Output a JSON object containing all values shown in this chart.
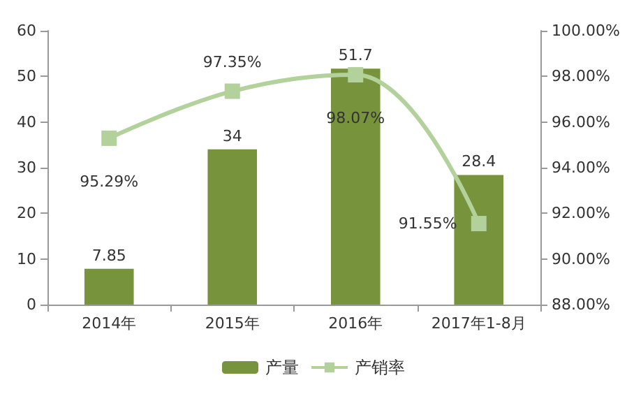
{
  "chart_data": {
    "type": "bar",
    "categories": [
      "2014年",
      "2015年",
      "2016年",
      "2017年1-8月"
    ],
    "series": [
      {
        "name": "产量",
        "color": "#77933c",
        "values": [
          7.85,
          34,
          51.7,
          28.4
        ],
        "value_labels": [
          "7.85",
          "34",
          "51.7",
          "28.4"
        ]
      },
      {
        "name": "产销率",
        "type": "line",
        "axis": "y2",
        "color": "#b3d19b",
        "values": [
          95.29,
          97.35,
          98.07,
          91.55
        ],
        "value_labels": [
          "95.29%",
          "97.35%",
          "98.07%",
          "91.55%"
        ]
      }
    ],
    "ylim": [
      0,
      60
    ],
    "yticks": [
      0,
      10,
      20,
      30,
      40,
      50,
      60
    ],
    "y2lim": [
      88,
      100
    ],
    "y2ticks": [
      {
        "value": 88,
        "label": "88.00%"
      },
      {
        "value": 90,
        "label": "90.00%"
      },
      {
        "value": 92,
        "label": "92.00%"
      },
      {
        "value": 94,
        "label": "94.00%"
      },
      {
        "value": 96,
        "label": "96.00%"
      },
      {
        "value": 98,
        "label": "98.00%"
      },
      {
        "value": 100,
        "label": "100.00%"
      }
    ],
    "grid": false,
    "legend": "bottom",
    "marker": "square"
  }
}
